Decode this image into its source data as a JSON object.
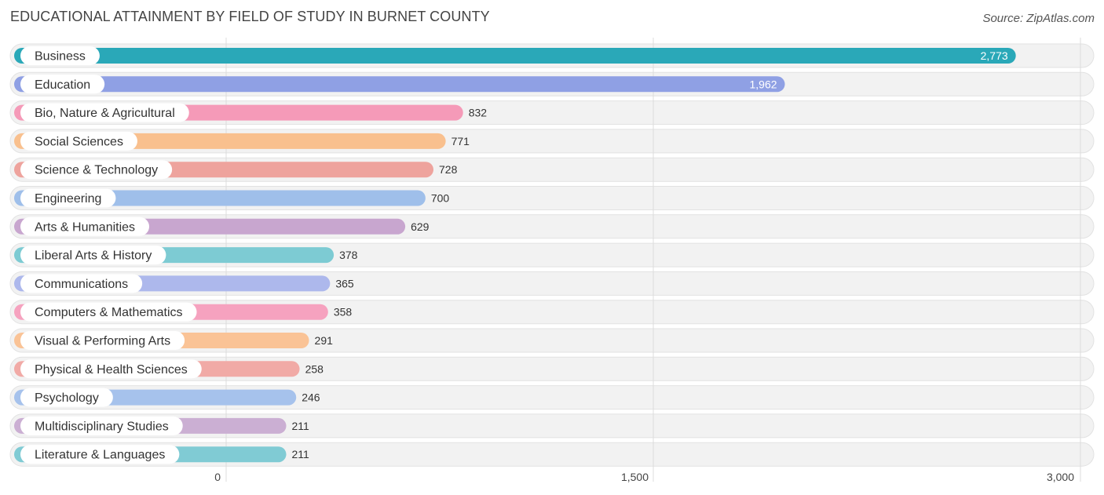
{
  "header": {
    "title": "EDUCATIONAL ATTAINMENT BY FIELD OF STUDY IN BURNET COUNTY",
    "source": "Source: ZipAtlas.com"
  },
  "chart_data": {
    "type": "bar",
    "orientation": "horizontal",
    "title": "EDUCATIONAL ATTAINMENT BY FIELD OF STUDY IN BURNET COUNTY",
    "categories": [
      "Business",
      "Education",
      "Bio, Nature & Agricultural",
      "Social Sciences",
      "Science & Technology",
      "Engineering",
      "Arts & Humanities",
      "Liberal Arts & History",
      "Communications",
      "Computers & Mathematics",
      "Visual & Performing Arts",
      "Physical & Health Sciences",
      "Psychology",
      "Multidisciplinary Studies",
      "Literature & Languages"
    ],
    "values": [
      2773,
      1962,
      832,
      771,
      728,
      700,
      629,
      378,
      365,
      358,
      291,
      258,
      246,
      211,
      211
    ],
    "value_labels": [
      "2,773",
      "1,962",
      "832",
      "771",
      "728",
      "700",
      "629",
      "378",
      "365",
      "358",
      "291",
      "258",
      "246",
      "211",
      "211"
    ],
    "colors": [
      "#2aa8b8",
      "#8fa0e4",
      "#f59ab8",
      "#f9c08e",
      "#eea39d",
      "#9fbfea",
      "#c8a6cf",
      "#7dcbd3",
      "#adb8ec",
      "#f6a2bf",
      "#fac396",
      "#f1aaa6",
      "#a6c2ec",
      "#cbafd3",
      "#80cbd4"
    ],
    "xlim": [
      0,
      3000
    ],
    "xticks": [
      0,
      1500,
      3000
    ],
    "xtick_labels": [
      "0",
      "1,500",
      "3,000"
    ],
    "grid": true,
    "xlabel": "",
    "ylabel": ""
  }
}
